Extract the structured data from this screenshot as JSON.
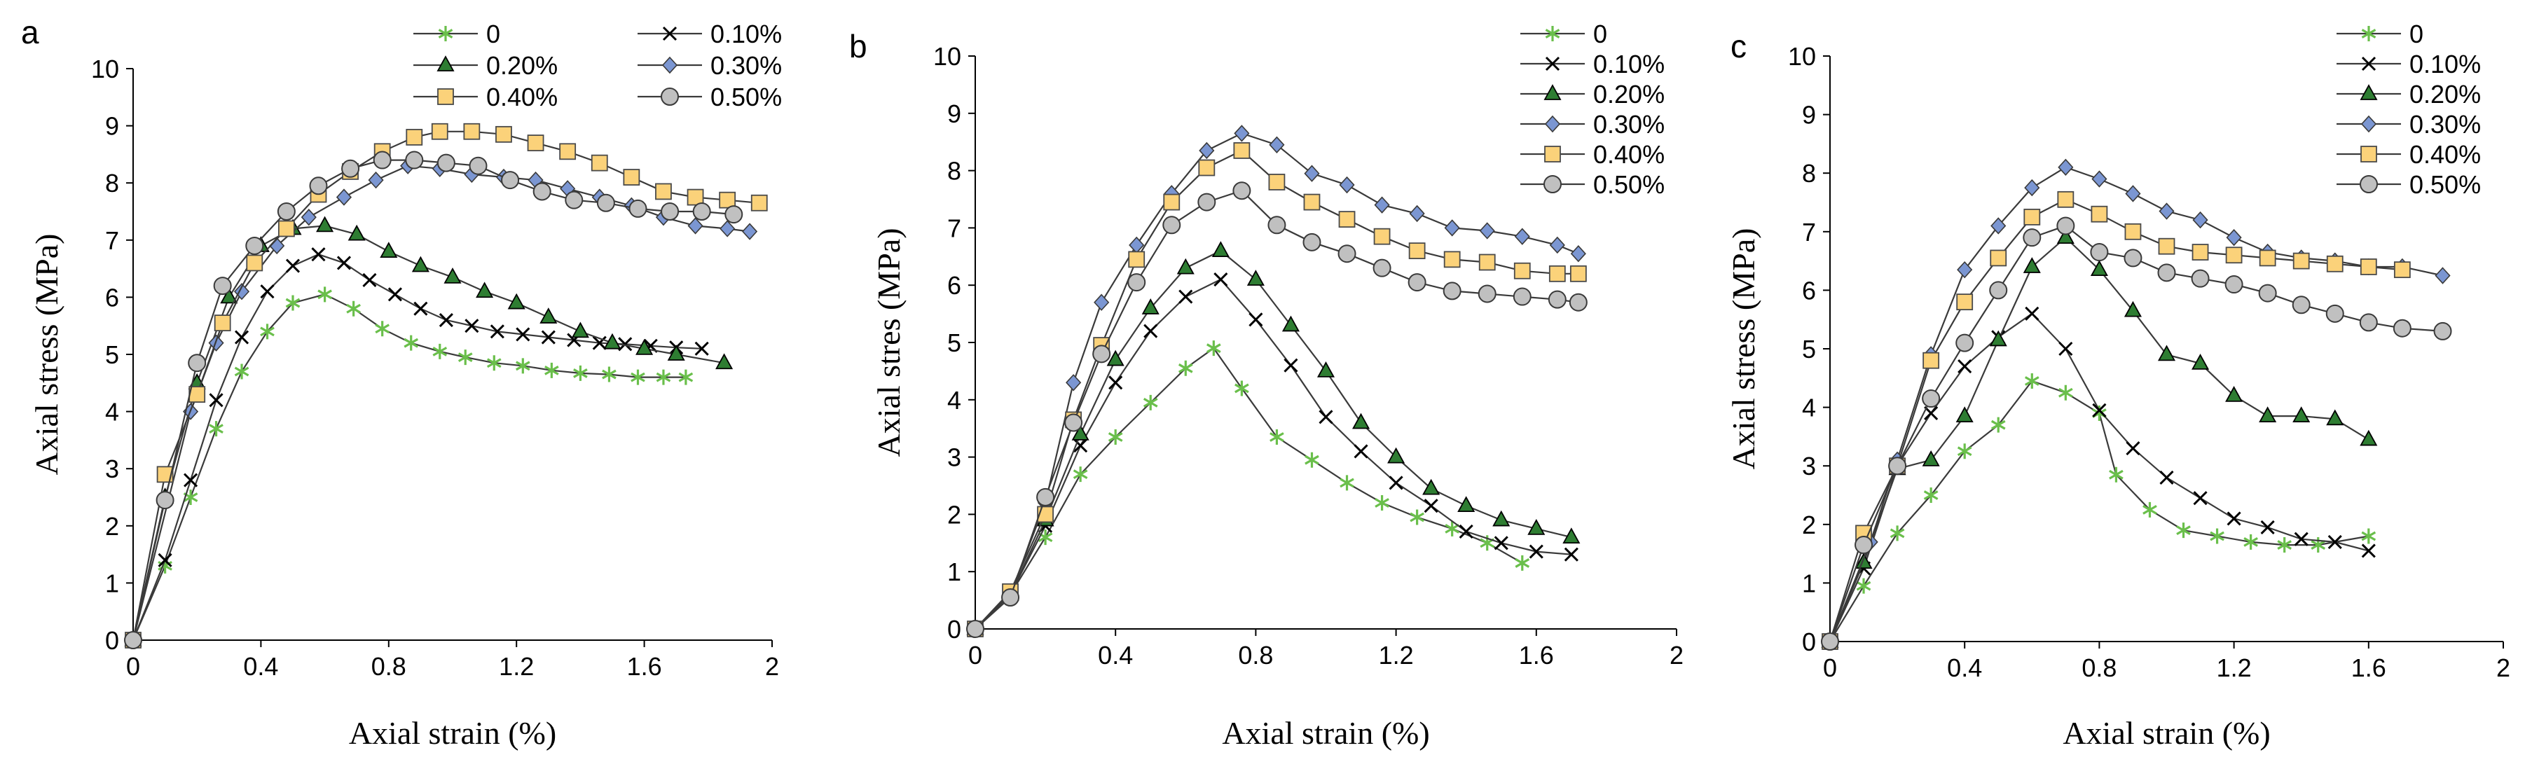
{
  "chart_data": [
    {
      "panel_label": "a",
      "type": "line",
      "xlabel": "Axial strain (%)",
      "ylabel": "Axial stress (MPa)",
      "xlim": [
        0,
        2
      ],
      "ylim": [
        0,
        10
      ],
      "xticks": [
        "0",
        "0.4",
        "0.8",
        "1.2",
        "1.6",
        "2"
      ],
      "yticks": [
        "0",
        "1",
        "2",
        "3",
        "4",
        "5",
        "6",
        "7",
        "8",
        "9",
        "10"
      ],
      "legend_layout": "two-column top",
      "series": [
        {
          "name": "0",
          "marker": "star",
          "color": "#6abf4b",
          "x": [
            0,
            0.1,
            0.18,
            0.26,
            0.34,
            0.42,
            0.5,
            0.6,
            0.69,
            0.78,
            0.87,
            0.96,
            1.04,
            1.13,
            1.22,
            1.31,
            1.4,
            1.49,
            1.58,
            1.66,
            1.73
          ],
          "y": [
            0,
            1.3,
            2.5,
            3.7,
            4.7,
            5.4,
            5.9,
            6.05,
            5.8,
            5.45,
            5.2,
            5.05,
            4.95,
            4.85,
            4.8,
            4.72,
            4.67,
            4.65,
            4.6,
            4.6,
            4.6
          ]
        },
        {
          "name": "0.10%",
          "marker": "x",
          "color": "#000000",
          "x": [
            0,
            0.1,
            0.18,
            0.26,
            0.34,
            0.42,
            0.5,
            0.58,
            0.66,
            0.74,
            0.82,
            0.9,
            0.98,
            1.06,
            1.14,
            1.22,
            1.3,
            1.38,
            1.46,
            1.54,
            1.62,
            1.7,
            1.78
          ],
          "y": [
            0,
            1.4,
            2.8,
            4.2,
            5.3,
            6.1,
            6.55,
            6.75,
            6.6,
            6.3,
            6.05,
            5.8,
            5.6,
            5.5,
            5.4,
            5.35,
            5.3,
            5.25,
            5.2,
            5.18,
            5.15,
            5.12,
            5.1
          ]
        },
        {
          "name": "0.20%",
          "marker": "triangle",
          "color": "#2e7d32",
          "x": [
            0,
            0.1,
            0.2,
            0.3,
            0.4,
            0.5,
            0.6,
            0.7,
            0.8,
            0.9,
            1.0,
            1.1,
            1.2,
            1.3,
            1.4,
            1.5,
            1.6,
            1.7,
            1.85
          ],
          "y": [
            0,
            2.5,
            4.5,
            6.0,
            6.9,
            7.2,
            7.25,
            7.1,
            6.8,
            6.55,
            6.35,
            6.1,
            5.9,
            5.65,
            5.4,
            5.2,
            5.1,
            5.0,
            4.85
          ]
        },
        {
          "name": "0.30%",
          "marker": "diamond",
          "color": "#7b96d2",
          "x": [
            0,
            0.18,
            0.26,
            0.34,
            0.45,
            0.55,
            0.66,
            0.76,
            0.86,
            0.96,
            1.06,
            1.16,
            1.26,
            1.36,
            1.46,
            1.56,
            1.66,
            1.76,
            1.86,
            1.93
          ],
          "y": [
            0,
            4.0,
            5.2,
            6.1,
            6.9,
            7.4,
            7.75,
            8.05,
            8.3,
            8.25,
            8.15,
            8.1,
            8.05,
            7.9,
            7.75,
            7.6,
            7.4,
            7.25,
            7.2,
            7.15
          ]
        },
        {
          "name": "0.40%",
          "marker": "square",
          "color": "#fbd27a",
          "x": [
            0,
            0.1,
            0.2,
            0.28,
            0.38,
            0.48,
            0.58,
            0.68,
            0.78,
            0.88,
            0.96,
            1.06,
            1.16,
            1.26,
            1.36,
            1.46,
            1.56,
            1.66,
            1.76,
            1.86,
            1.96
          ],
          "y": [
            0,
            2.9,
            4.3,
            5.55,
            6.6,
            7.2,
            7.8,
            8.2,
            8.55,
            8.8,
            8.9,
            8.9,
            8.85,
            8.7,
            8.55,
            8.35,
            8.1,
            7.85,
            7.75,
            7.7,
            7.65
          ]
        },
        {
          "name": "0.50%",
          "marker": "circle",
          "color": "#c0c0c0",
          "x": [
            0,
            0.1,
            0.2,
            0.28,
            0.38,
            0.48,
            0.58,
            0.68,
            0.78,
            0.88,
            0.98,
            1.08,
            1.18,
            1.28,
            1.38,
            1.48,
            1.58,
            1.68,
            1.78,
            1.88
          ],
          "y": [
            0,
            2.45,
            4.85,
            6.2,
            6.9,
            7.5,
            7.95,
            8.25,
            8.4,
            8.4,
            8.35,
            8.3,
            8.05,
            7.85,
            7.7,
            7.65,
            7.55,
            7.5,
            7.5,
            7.45
          ]
        }
      ]
    },
    {
      "panel_label": "b",
      "type": "line",
      "xlabel": "Axial strain (%)",
      "ylabel": "Axial stres (MPa)",
      "xlim": [
        0,
        2
      ],
      "ylim": [
        0,
        10
      ],
      "xticks": [
        "0",
        "0.4",
        "0.8",
        "1.2",
        "1.6",
        "2"
      ],
      "yticks": [
        "0",
        "1",
        "2",
        "3",
        "4",
        "5",
        "6",
        "7",
        "8",
        "9",
        "10"
      ],
      "legend_layout": "single-column top-right",
      "series": [
        {
          "name": "0",
          "marker": "star",
          "color": "#6abf4b",
          "x": [
            0,
            0.1,
            0.2,
            0.3,
            0.4,
            0.5,
            0.6,
            0.68,
            0.76,
            0.86,
            0.96,
            1.06,
            1.16,
            1.26,
            1.36,
            1.46,
            1.56
          ],
          "y": [
            0,
            0.6,
            1.6,
            2.7,
            3.35,
            3.95,
            4.55,
            4.9,
            4.2,
            3.35,
            2.95,
            2.55,
            2.2,
            1.95,
            1.75,
            1.5,
            1.15
          ]
        },
        {
          "name": "0.10%",
          "marker": "x",
          "color": "#000000",
          "x": [
            0,
            0.1,
            0.2,
            0.3,
            0.4,
            0.5,
            0.6,
            0.7,
            0.8,
            0.9,
            1.0,
            1.1,
            1.2,
            1.3,
            1.4,
            1.5,
            1.6,
            1.7
          ],
          "y": [
            0,
            0.6,
            1.8,
            3.2,
            4.3,
            5.2,
            5.8,
            6.1,
            5.4,
            4.6,
            3.7,
            3.1,
            2.55,
            2.15,
            1.7,
            1.5,
            1.35,
            1.3
          ]
        },
        {
          "name": "0.20%",
          "marker": "triangle",
          "color": "#2e7d32",
          "x": [
            0,
            0.1,
            0.2,
            0.3,
            0.4,
            0.5,
            0.6,
            0.7,
            0.8,
            0.9,
            1.0,
            1.1,
            1.2,
            1.3,
            1.4,
            1.5,
            1.6,
            1.7
          ],
          "y": [
            0,
            0.6,
            1.9,
            3.4,
            4.7,
            5.6,
            6.3,
            6.6,
            6.1,
            5.3,
            4.5,
            3.6,
            3.0,
            2.45,
            2.15,
            1.9,
            1.75,
            1.6
          ]
        },
        {
          "name": "0.30%",
          "marker": "diamond",
          "color": "#7b96d2",
          "x": [
            0,
            0.1,
            0.2,
            0.28,
            0.36,
            0.46,
            0.56,
            0.66,
            0.76,
            0.86,
            0.96,
            1.06,
            1.16,
            1.26,
            1.36,
            1.46,
            1.56,
            1.66,
            1.72
          ],
          "y": [
            0,
            0.6,
            2.2,
            4.3,
            5.7,
            6.7,
            7.6,
            8.35,
            8.65,
            8.45,
            7.95,
            7.75,
            7.4,
            7.25,
            7.0,
            6.95,
            6.85,
            6.7,
            6.55
          ]
        },
        {
          "name": "0.40%",
          "marker": "square",
          "color": "#fbd27a",
          "x": [
            0,
            0.1,
            0.2,
            0.28,
            0.36,
            0.46,
            0.56,
            0.66,
            0.76,
            0.86,
            0.96,
            1.06,
            1.16,
            1.26,
            1.36,
            1.46,
            1.56,
            1.66,
            1.72
          ],
          "y": [
            0,
            0.65,
            2.0,
            3.65,
            4.95,
            6.45,
            7.45,
            8.05,
            8.35,
            7.8,
            7.45,
            7.15,
            6.85,
            6.6,
            6.45,
            6.4,
            6.25,
            6.2,
            6.2
          ]
        },
        {
          "name": "0.50%",
          "marker": "circle",
          "color": "#c0c0c0",
          "x": [
            0,
            0.1,
            0.2,
            0.28,
            0.36,
            0.46,
            0.56,
            0.66,
            0.76,
            0.86,
            0.96,
            1.06,
            1.16,
            1.26,
            1.36,
            1.46,
            1.56,
            1.66,
            1.72
          ],
          "y": [
            0,
            0.55,
            2.3,
            3.6,
            4.8,
            6.05,
            7.05,
            7.45,
            7.65,
            7.05,
            6.75,
            6.55,
            6.3,
            6.05,
            5.9,
            5.85,
            5.8,
            5.75,
            5.7
          ]
        }
      ]
    },
    {
      "panel_label": "c",
      "type": "line",
      "xlabel": "Axial strain (%)",
      "ylabel": "Axial stress (MPa)",
      "xlim": [
        0,
        2
      ],
      "ylim": [
        0,
        10
      ],
      "xticks": [
        "0",
        "0.4",
        "0.8",
        "1.2",
        "1.6",
        "2"
      ],
      "yticks": [
        "0",
        "1",
        "2",
        "3",
        "4",
        "5",
        "6",
        "7",
        "8",
        "9",
        "10"
      ],
      "legend_layout": "single-column top-right",
      "series": [
        {
          "name": "0",
          "marker": "star",
          "color": "#6abf4b",
          "x": [
            0,
            0.1,
            0.2,
            0.3,
            0.4,
            0.5,
            0.6,
            0.7,
            0.8,
            0.85,
            0.95,
            1.05,
            1.15,
            1.25,
            1.35,
            1.45,
            1.6
          ],
          "y": [
            0,
            0.95,
            1.85,
            2.5,
            3.25,
            3.7,
            4.45,
            4.25,
            3.9,
            2.85,
            2.25,
            1.9,
            1.8,
            1.7,
            1.65,
            1.65,
            1.8
          ]
        },
        {
          "name": "0.10%",
          "marker": "x",
          "color": "#000000",
          "x": [
            0,
            0.1,
            0.2,
            0.3,
            0.4,
            0.5,
            0.6,
            0.7,
            0.8,
            0.9,
            1.0,
            1.1,
            1.2,
            1.3,
            1.4,
            1.5,
            1.6
          ],
          "y": [
            0,
            1.25,
            3.0,
            3.9,
            4.7,
            5.2,
            5.6,
            5.0,
            3.95,
            3.3,
            2.8,
            2.45,
            2.1,
            1.95,
            1.75,
            1.7,
            1.55
          ]
        },
        {
          "name": "0.20%",
          "marker": "triangle",
          "color": "#2e7d32",
          "x": [
            0,
            0.1,
            0.2,
            0.3,
            0.4,
            0.5,
            0.6,
            0.7,
            0.8,
            0.9,
            1.0,
            1.1,
            1.2,
            1.3,
            1.4,
            1.5,
            1.6
          ],
          "y": [
            0,
            1.35,
            2.95,
            3.1,
            3.85,
            5.15,
            6.4,
            6.9,
            6.35,
            5.65,
            4.9,
            4.75,
            4.2,
            3.85,
            3.85,
            3.8,
            3.45
          ]
        },
        {
          "name": "0.30%",
          "marker": "diamond",
          "color": "#7b96d2",
          "x": [
            0,
            0.12,
            0.2,
            0.3,
            0.4,
            0.5,
            0.6,
            0.7,
            0.8,
            0.9,
            1.0,
            1.1,
            1.2,
            1.3,
            1.4,
            1.5,
            1.6,
            1.7,
            1.82
          ],
          "y": [
            0,
            1.7,
            3.1,
            4.9,
            6.35,
            7.1,
            7.75,
            8.1,
            7.9,
            7.65,
            7.35,
            7.2,
            6.9,
            6.65,
            6.55,
            6.5,
            6.4,
            6.4,
            6.25
          ]
        },
        {
          "name": "0.40%",
          "marker": "square",
          "color": "#fbd27a",
          "x": [
            0,
            0.1,
            0.2,
            0.3,
            0.4,
            0.5,
            0.6,
            0.7,
            0.8,
            0.9,
            1.0,
            1.1,
            1.2,
            1.3,
            1.4,
            1.5,
            1.6,
            1.7
          ],
          "y": [
            0,
            1.85,
            3.0,
            4.8,
            5.8,
            6.55,
            7.25,
            7.55,
            7.3,
            7.0,
            6.75,
            6.65,
            6.6,
            6.55,
            6.5,
            6.45,
            6.4,
            6.35
          ]
        },
        {
          "name": "0.50%",
          "marker": "circle",
          "color": "#c0c0c0",
          "x": [
            0,
            0.1,
            0.2,
            0.3,
            0.4,
            0.5,
            0.6,
            0.7,
            0.8,
            0.9,
            1.0,
            1.1,
            1.2,
            1.3,
            1.4,
            1.5,
            1.6,
            1.7,
            1.82
          ],
          "y": [
            0,
            1.65,
            3.0,
            4.15,
            5.1,
            6.0,
            6.9,
            7.1,
            6.65,
            6.55,
            6.3,
            6.2,
            6.1,
            5.95,
            5.75,
            5.6,
            5.45,
            5.35,
            5.3
          ]
        }
      ]
    }
  ]
}
